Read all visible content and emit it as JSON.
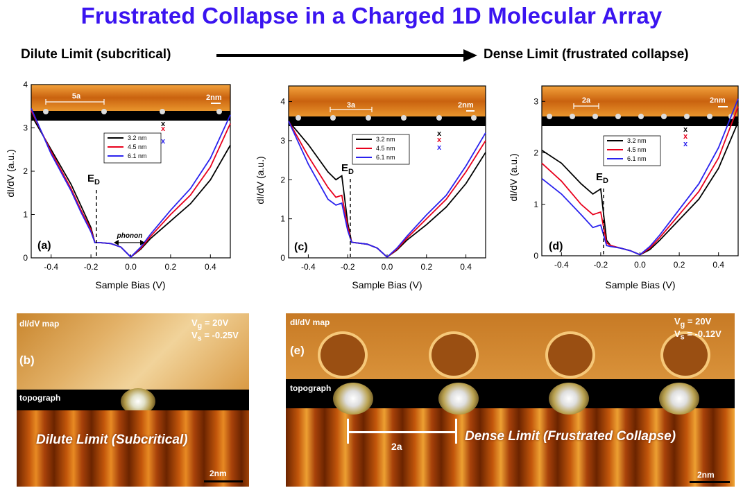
{
  "title": "Frustrated Collapse in a Charged 1D Molecular Array",
  "header": {
    "left_label": "Dilute Limit (subcritical)",
    "right_label": "Dense Limit (frustrated collapse)"
  },
  "colors": {
    "title": "#3a14f0",
    "series_black": "#000000",
    "series_red": "#e8001c",
    "series_blue": "#2a22ee"
  },
  "legend_entries": [
    "3.2 nm",
    "4.5 nm",
    "6.1 nm"
  ],
  "spec_panels": [
    {
      "label": "(a)",
      "spacing": "5a",
      "scale": "2nm",
      "ed_label": "E",
      "ed_sub": "D",
      "annotation": "phonon",
      "y_ticks": [
        "0",
        "1",
        "2",
        "3",
        "4"
      ],
      "x_ticks": [
        "-0.4",
        "-0.2",
        "0.0",
        "0.2",
        "0.4"
      ],
      "xlabel": "Sample Bias (V)",
      "ylabel": "dI/dV (a.u.)"
    },
    {
      "label": "(c)",
      "spacing": "3a",
      "scale": "2nm",
      "ed_label": "E",
      "ed_sub": "D",
      "y_ticks": [
        "0",
        "1",
        "2",
        "3",
        "4"
      ],
      "x_ticks": [
        "-0.4",
        "-0.2",
        "0.0",
        "0.2",
        "0.4"
      ],
      "xlabel": "Sample Bias (V)",
      "ylabel": "dI/dV (a.u.)"
    },
    {
      "label": "(d)",
      "spacing": "2a",
      "scale": "2nm",
      "ed_label": "E",
      "ed_sub": "D",
      "y_ticks": [
        "0",
        "1",
        "2",
        "3"
      ],
      "x_ticks": [
        "-0.4",
        "-0.2",
        "0.0",
        "0.2",
        "0.4"
      ],
      "xlabel": "Sample Bias (V)",
      "ylabel": "dI/dV (a.u.)"
    }
  ],
  "map_b": {
    "map_label": "dI/dV map",
    "vg_label": "V",
    "vg_sub": "g",
    "vg_value": " = 20V",
    "vs_label": "V",
    "vs_sub": "s",
    "vs_value": " = -0.25V",
    "panel": "(b)",
    "topo_label": "topograph",
    "caption": "Dilute Limit (Subcritical)",
    "scale": "2nm"
  },
  "map_e": {
    "map_label": "dI/dV map",
    "vg_label": "V",
    "vg_sub": "g",
    "vg_value": " = 20V",
    "vs_label": "V",
    "vs_sub": "s",
    "vs_value": " = -0.12V",
    "panel": "(e)",
    "topo_label": "topograph",
    "caption": "Dense Limit (Frustrated Collapse)",
    "spacing": "2a",
    "scale": "2nm"
  },
  "chart_data": [
    {
      "type": "line",
      "panel": "(a)",
      "xlabel": "Sample Bias (V)",
      "ylabel": "dI/dV (a.u.)",
      "xlim": [
        -0.5,
        0.5
      ],
      "ylim": [
        0,
        4
      ],
      "series": [
        {
          "name": "3.2 nm",
          "x": [
            -0.5,
            -0.4,
            -0.3,
            -0.25,
            -0.2,
            -0.18,
            -0.15,
            -0.1,
            -0.05,
            0,
            0.05,
            0.1,
            0.2,
            0.3,
            0.4,
            0.5
          ],
          "y": [
            3.3,
            2.5,
            1.7,
            1.2,
            0.7,
            0.35,
            0.35,
            0.33,
            0.25,
            0.02,
            0.2,
            0.45,
            0.85,
            1.25,
            1.8,
            2.6
          ]
        },
        {
          "name": "4.5 nm",
          "x": [
            -0.5,
            -0.4,
            -0.3,
            -0.25,
            -0.2,
            -0.18,
            -0.15,
            -0.1,
            -0.05,
            0,
            0.05,
            0.1,
            0.2,
            0.3,
            0.4,
            0.5
          ],
          "y": [
            3.4,
            2.45,
            1.6,
            1.1,
            0.65,
            0.35,
            0.35,
            0.33,
            0.25,
            0.02,
            0.22,
            0.5,
            1.0,
            1.45,
            2.1,
            3.1
          ]
        },
        {
          "name": "6.1 nm",
          "x": [
            -0.5,
            -0.4,
            -0.3,
            -0.25,
            -0.2,
            -0.18,
            -0.15,
            -0.1,
            -0.05,
            0,
            0.05,
            0.1,
            0.2,
            0.3,
            0.4,
            0.5
          ],
          "y": [
            3.45,
            2.4,
            1.55,
            1.05,
            0.6,
            0.35,
            0.35,
            0.33,
            0.25,
            0.02,
            0.25,
            0.55,
            1.1,
            1.6,
            2.3,
            3.3
          ]
        }
      ]
    },
    {
      "type": "line",
      "panel": "(c)",
      "xlabel": "Sample Bias (V)",
      "ylabel": "dI/dV (a.u.)",
      "xlim": [
        -0.5,
        0.5
      ],
      "ylim": [
        0,
        4.4
      ],
      "series": [
        {
          "name": "3.2 nm",
          "x": [
            -0.5,
            -0.4,
            -0.3,
            -0.26,
            -0.23,
            -0.2,
            -0.18,
            -0.1,
            -0.05,
            0,
            0.05,
            0.1,
            0.2,
            0.3,
            0.4,
            0.5
          ],
          "y": [
            3.5,
            2.9,
            2.2,
            2.0,
            2.1,
            0.9,
            0.4,
            0.35,
            0.25,
            0.02,
            0.2,
            0.45,
            0.85,
            1.3,
            1.9,
            2.7
          ]
        },
        {
          "name": "4.5 nm",
          "x": [
            -0.5,
            -0.4,
            -0.3,
            -0.26,
            -0.23,
            -0.2,
            -0.18,
            -0.1,
            -0.05,
            0,
            0.05,
            0.1,
            0.2,
            0.3,
            0.4,
            0.5
          ],
          "y": [
            3.5,
            2.6,
            1.8,
            1.55,
            1.6,
            0.8,
            0.4,
            0.35,
            0.25,
            0.02,
            0.22,
            0.5,
            1.0,
            1.5,
            2.2,
            3.0
          ]
        },
        {
          "name": "6.1 nm",
          "x": [
            -0.5,
            -0.4,
            -0.3,
            -0.26,
            -0.23,
            -0.2,
            -0.18,
            -0.1,
            -0.05,
            0,
            0.05,
            0.1,
            0.2,
            0.3,
            0.4,
            0.5
          ],
          "y": [
            3.5,
            2.4,
            1.5,
            1.35,
            1.4,
            0.7,
            0.4,
            0.35,
            0.25,
            0.02,
            0.25,
            0.55,
            1.1,
            1.6,
            2.35,
            3.2
          ]
        }
      ]
    },
    {
      "type": "line",
      "panel": "(d)",
      "xlabel": "Sample Bias (V)",
      "ylabel": "dI/dV (a.u.)",
      "xlim": [
        -0.5,
        0.5
      ],
      "ylim": [
        0,
        3.3
      ],
      "series": [
        {
          "name": "3.2 nm",
          "x": [
            -0.5,
            -0.4,
            -0.3,
            -0.24,
            -0.2,
            -0.17,
            -0.15,
            -0.1,
            -0.05,
            0,
            0.05,
            0.1,
            0.2,
            0.3,
            0.4,
            0.5
          ],
          "y": [
            2.05,
            1.8,
            1.4,
            1.2,
            1.3,
            0.3,
            0.2,
            0.15,
            0.1,
            0.02,
            0.12,
            0.3,
            0.7,
            1.1,
            1.7,
            2.6
          ]
        },
        {
          "name": "4.5 nm",
          "x": [
            -0.5,
            -0.4,
            -0.3,
            -0.24,
            -0.2,
            -0.17,
            -0.15,
            -0.1,
            -0.05,
            0,
            0.05,
            0.1,
            0.2,
            0.3,
            0.4,
            0.5
          ],
          "y": [
            1.8,
            1.45,
            1.0,
            0.8,
            0.85,
            0.25,
            0.2,
            0.15,
            0.1,
            0.02,
            0.15,
            0.35,
            0.8,
            1.25,
            1.9,
            2.9
          ]
        },
        {
          "name": "6.1 nm",
          "x": [
            -0.5,
            -0.4,
            -0.3,
            -0.24,
            -0.2,
            -0.17,
            -0.15,
            -0.1,
            -0.05,
            0,
            0.05,
            0.1,
            0.2,
            0.3,
            0.4,
            0.5
          ],
          "y": [
            1.5,
            1.2,
            0.8,
            0.55,
            0.6,
            0.2,
            0.18,
            0.15,
            0.1,
            0.02,
            0.18,
            0.4,
            0.9,
            1.4,
            2.1,
            3.05
          ]
        }
      ]
    }
  ]
}
